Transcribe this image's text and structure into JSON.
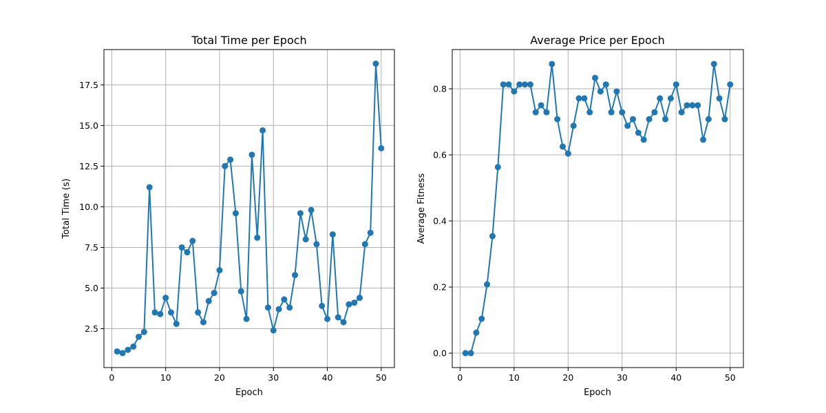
{
  "colors": {
    "series": "#1f77b4",
    "grid": "#b0b0b0",
    "background": "#ffffff"
  },
  "chart_data": [
    {
      "type": "line",
      "title": "Total Time per Epoch",
      "xlabel": "Epoch",
      "ylabel": "Total Time (s)",
      "xlim": [
        -1.45,
        52.45
      ],
      "ylim": [
        0.11,
        19.67
      ],
      "xticks": [
        0,
        10,
        20,
        30,
        40,
        50
      ],
      "yticks": [
        2.5,
        5.0,
        7.5,
        10.0,
        12.5,
        15.0,
        17.5
      ],
      "ytick_labels": [
        "2.5",
        "5.0",
        "7.5",
        "10.0",
        "12.5",
        "15.0",
        "17.5"
      ],
      "grid": true,
      "marker": "circle",
      "x": [
        1,
        2,
        3,
        4,
        5,
        6,
        7,
        8,
        9,
        10,
        11,
        12,
        13,
        14,
        15,
        16,
        17,
        18,
        19,
        20,
        21,
        22,
        23,
        24,
        25,
        26,
        27,
        28,
        29,
        30,
        31,
        32,
        33,
        34,
        35,
        36,
        37,
        38,
        39,
        40,
        41,
        42,
        43,
        44,
        45,
        46,
        47,
        48,
        49,
        50
      ],
      "y": [
        1.1,
        1.0,
        1.2,
        1.4,
        2.0,
        2.3,
        11.2,
        3.5,
        3.4,
        4.4,
        3.5,
        2.8,
        7.5,
        7.2,
        7.9,
        3.5,
        2.9,
        4.2,
        4.7,
        6.1,
        12.5,
        12.9,
        9.6,
        4.8,
        3.1,
        13.2,
        8.1,
        14.7,
        3.8,
        2.4,
        3.7,
        4.3,
        3.8,
        5.8,
        9.6,
        8.0,
        9.8,
        7.7,
        3.9,
        3.1,
        8.3,
        3.2,
        2.9,
        4.0,
        4.1,
        4.4,
        7.7,
        8.4,
        18.8,
        13.6
      ]
    },
    {
      "type": "line",
      "title": "Average Price per Epoch",
      "xlabel": "Epoch",
      "ylabel": "Average Fitness",
      "xlim": [
        -1.45,
        52.45
      ],
      "ylim": [
        -0.0437,
        0.9187
      ],
      "xticks": [
        0,
        10,
        20,
        30,
        40,
        50
      ],
      "yticks": [
        0.0,
        0.2,
        0.4,
        0.6,
        0.8
      ],
      "ytick_labels": [
        "0.0",
        "0.2",
        "0.4",
        "0.6",
        "0.8"
      ],
      "grid": true,
      "marker": "circle",
      "x": [
        1,
        2,
        3,
        4,
        5,
        6,
        7,
        8,
        9,
        10,
        11,
        12,
        13,
        14,
        15,
        16,
        17,
        18,
        19,
        20,
        21,
        22,
        23,
        24,
        25,
        26,
        27,
        28,
        29,
        30,
        31,
        32,
        33,
        34,
        35,
        36,
        37,
        38,
        39,
        40,
        41,
        42,
        43,
        44,
        45,
        46,
        47,
        48,
        49,
        50
      ],
      "y": [
        0.0,
        0.0,
        0.062,
        0.104,
        0.208,
        0.354,
        0.563,
        0.813,
        0.813,
        0.792,
        0.813,
        0.813,
        0.813,
        0.729,
        0.75,
        0.729,
        0.875,
        0.708,
        0.625,
        0.604,
        0.688,
        0.771,
        0.771,
        0.729,
        0.833,
        0.792,
        0.813,
        0.729,
        0.792,
        0.729,
        0.688,
        0.708,
        0.667,
        0.646,
        0.708,
        0.729,
        0.771,
        0.708,
        0.771,
        0.813,
        0.729,
        0.75,
        0.75,
        0.75,
        0.646,
        0.708,
        0.875,
        0.771,
        0.708,
        0.813
      ]
    }
  ]
}
